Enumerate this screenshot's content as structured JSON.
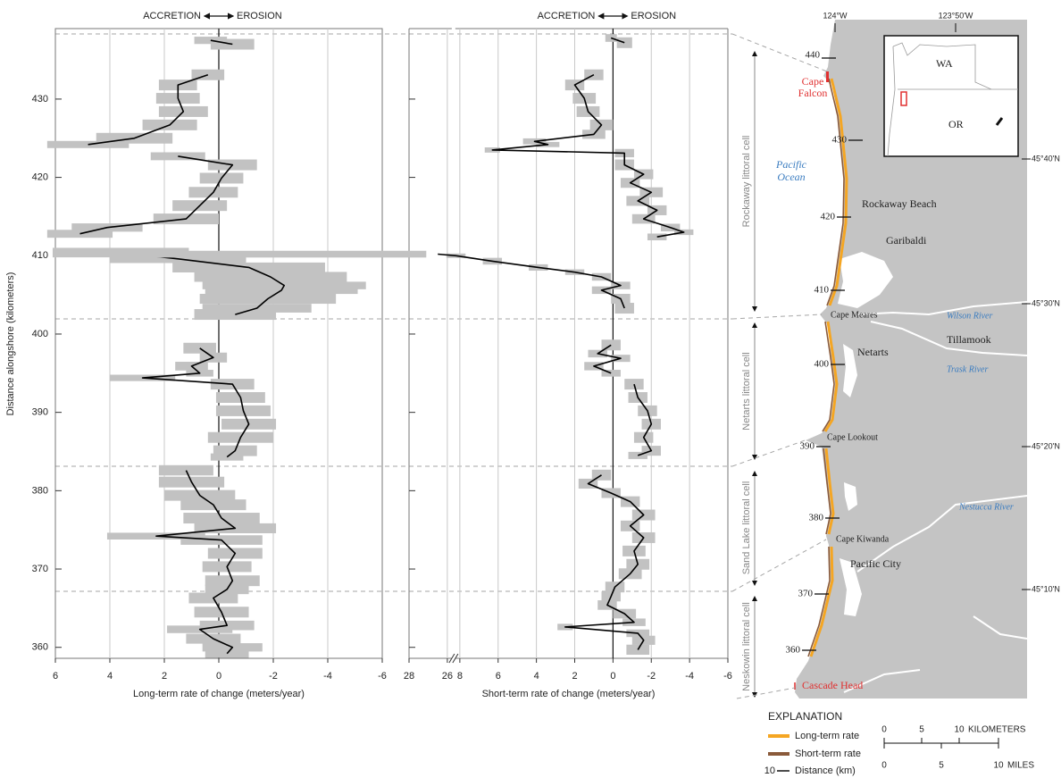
{
  "chart_data": [
    {
      "type": "line",
      "orientation": "horizontal",
      "header": [
        "ACCRETION",
        "EROSION"
      ],
      "xlabel": "Long-term rate of change (meters/year)",
      "ylabel": "Distance alongshore (kilometers)",
      "xlim": [
        6,
        -6
      ],
      "xticks": [
        6,
        4,
        2,
        0,
        -2,
        -4,
        -6
      ],
      "ylim": [
        358.6,
        439
      ],
      "yticks": [
        360,
        370,
        380,
        390,
        400,
        410,
        420,
        430
      ],
      "show_ytick_labels": true,
      "grid": true,
      "series": [
        {
          "color": "#000000",
          "band_color": "#c2c2c2",
          "y": [
            437.5,
            437.0,
            435.0,
            433.1,
            431.8,
            430.1,
            428.4,
            426.7,
            425.0,
            424.2,
            423.4,
            422.7,
            421.6,
            419.9,
            418.1,
            416.4,
            414.7,
            413.6,
            412.8,
            411.8,
            410.4,
            409.6,
            408.5,
            407.3,
            406.2,
            405.6,
            404.5,
            403.3,
            402.5,
            400.5,
            398.2,
            397.0,
            395.9,
            395.0,
            394.4,
            393.6,
            391.9,
            390.2,
            388.5,
            386.8,
            385.1,
            384.3,
            383.5,
            382.6,
            381.1,
            379.4,
            378.2,
            376.5,
            375.2,
            374.2,
            373.7,
            372.0,
            370.3,
            368.5,
            367.4,
            366.3,
            364.5,
            362.8,
            362.3,
            361.1,
            360.0,
            359.2
          ],
          "values": [
            0.3,
            -0.5,
            null,
            0.4,
            1.5,
            1.5,
            1.3,
            1.8,
            3.1,
            4.8,
            null,
            1.5,
            -0.5,
            -0.1,
            0.2,
            0.7,
            1.2,
            4.1,
            5.1,
            null,
            3.6,
            1.5,
            -1.1,
            -1.9,
            -2.4,
            -2.3,
            -1.8,
            -1.4,
            -0.6,
            null,
            0.7,
            0.2,
            1.0,
            0.7,
            2.8,
            -0.5,
            -0.8,
            -0.9,
            -1.1,
            -0.8,
            -0.6,
            -0.3,
            null,
            1.2,
            1.0,
            0.7,
            0.2,
            -0.1,
            -0.6,
            2.3,
            -0.1,
            -0.6,
            -0.3,
            -0.5,
            -0.3,
            0.2,
            -0.1,
            -0.3,
            0.7,
            0.2,
            -0.5,
            -0.3
          ],
          "error": [
            0.6,
            0.8,
            null,
            0.6,
            0.7,
            0.8,
            0.9,
            1.0,
            1.4,
            1.5,
            null,
            1.0,
            0.9,
            0.8,
            0.9,
            1.0,
            1.2,
            1.3,
            1.2,
            null,
            2.5,
            2.5,
            2.8,
            2.8,
            3.0,
            2.8,
            2.5,
            2.0,
            1.5,
            null,
            0.6,
            0.5,
            0.6,
            0.5,
            1.2,
            0.8,
            0.9,
            1.0,
            1.0,
            1.2,
            0.8,
            0.6,
            null,
            1.0,
            1.2,
            1.3,
            1.2,
            1.4,
            1.5,
            1.8,
            1.5,
            1.0,
            0.9,
            1.0,
            0.8,
            0.9,
            1.0,
            1.0,
            1.2,
            1.0,
            1.1,
            0.8
          ]
        }
      ]
    },
    {
      "type": "line",
      "orientation": "horizontal",
      "header": [
        "ACCRETION",
        "EROSION"
      ],
      "xlabel": "Short-term rate of change (meters/year)",
      "xlim": [
        28,
        -6
      ],
      "x_break": [
        26,
        8
      ],
      "xticks": [
        28,
        26,
        8,
        6,
        4,
        2,
        0,
        -2,
        -4,
        -6
      ],
      "ylim": [
        358.6,
        439
      ],
      "yticks": [
        360,
        370,
        380,
        390,
        400,
        410,
        420,
        430
      ],
      "show_ytick_labels": false,
      "grid": true,
      "series": [
        {
          "color": "#000000",
          "band_color": "#c2c2c2",
          "y": [
            437.8,
            437.2,
            435.0,
            433.1,
            431.8,
            430.1,
            428.4,
            426.7,
            425.5,
            424.6,
            424.2,
            423.5,
            423.1,
            421.6,
            420.4,
            419.3,
            418.1,
            417.0,
            415.8,
            414.7,
            413.6,
            413.0,
            412.4,
            411.5,
            410.2,
            410.0,
            409.3,
            408.5,
            407.9,
            407.3,
            406.2,
            405.6,
            404.5,
            403.3,
            401.5,
            398.6,
            397.5,
            396.9,
            395.9,
            395.0,
            394.4,
            393.6,
            391.9,
            390.2,
            388.5,
            386.8,
            385.1,
            384.5,
            383.5,
            382.0,
            380.9,
            379.7,
            378.6,
            376.9,
            375.5,
            374.0,
            372.3,
            370.6,
            369.4,
            367.7,
            366.5,
            365.4,
            364.3,
            363.2,
            362.6,
            361.8,
            360.9,
            359.7
          ],
          "values": [
            0.1,
            -0.6,
            null,
            1.0,
            2.0,
            1.5,
            1.3,
            0.6,
            1.0,
            4.1,
            3.4,
            6.3,
            -0.6,
            -0.6,
            -1.6,
            -0.9,
            -2.0,
            -1.3,
            -2.3,
            -1.6,
            -3.0,
            -3.7,
            -2.3,
            null,
            26.5,
            8.2,
            6.3,
            3.9,
            2.0,
            0.6,
            -0.4,
            0.6,
            -0.4,
            -0.6,
            null,
            0.1,
            0.8,
            -0.4,
            1.0,
            0.1,
            null,
            -1.1,
            -1.3,
            -1.8,
            -2.0,
            -1.6,
            -2.0,
            -1.3,
            null,
            0.6,
            1.3,
            0.1,
            -0.9,
            -1.6,
            -0.9,
            -1.6,
            -1.1,
            -1.3,
            -0.9,
            -0.1,
            0.1,
            0.3,
            -0.6,
            -1.1,
            2.5,
            -1.3,
            -1.6,
            -1.3
          ],
          "error": [
            0.3,
            0.4,
            null,
            0.5,
            0.5,
            0.6,
            0.6,
            0.6,
            0.6,
            0.6,
            0.6,
            0.4,
            0.5,
            0.5,
            0.5,
            0.5,
            0.6,
            0.6,
            0.5,
            0.6,
            0.5,
            0.5,
            0.5,
            null,
            0.6,
            0.5,
            0.5,
            0.5,
            0.5,
            0.5,
            0.5,
            0.5,
            0.5,
            0.5,
            null,
            0.5,
            0.5,
            0.5,
            0.5,
            0.5,
            null,
            0.5,
            0.5,
            0.5,
            0.5,
            0.5,
            0.5,
            0.5,
            null,
            0.5,
            0.5,
            0.5,
            0.5,
            0.6,
            0.5,
            0.6,
            0.6,
            0.6,
            0.6,
            0.5,
            0.5,
            0.5,
            0.6,
            0.6,
            0.4,
            0.6,
            0.6,
            0.6
          ]
        }
      ]
    }
  ],
  "map": {
    "longitude_labels": [
      "124°W",
      "123°50'W"
    ],
    "latitude_labels": [
      "45°40'N",
      "45°30'N",
      "45°20'N",
      "45°10'N"
    ],
    "distance_labels": [
      440,
      430,
      420,
      410,
      400,
      390,
      380,
      370,
      360
    ],
    "cell_labels": [
      "Rockaway littoral cell",
      "Netarts littoral cell",
      "Sand Lake littoral cell",
      "Neskowin littoral cell"
    ],
    "cape_falcon": [
      "Cape",
      "Falcon"
    ],
    "ocean_label": [
      "Pacific",
      "Ocean"
    ],
    "places": [
      "Rockaway Beach",
      "Garibaldi",
      "Cape Meares",
      "Tillamook",
      "Netarts",
      "Cape Lookout",
      "Cape Kiwanda",
      "Pacific City"
    ],
    "rivers": [
      "Wilson River",
      "Trask River",
      "Nestucca River"
    ],
    "cascade_head": "Cascade Head",
    "inset_labels": [
      "WA",
      "OR"
    ],
    "explanation": {
      "title": "EXPLANATION",
      "items": [
        "Long-term rate",
        "Short-term rate",
        "Distance (km)"
      ],
      "distance_tick": 10
    },
    "scale": {
      "km_ticks": [
        0,
        5,
        10
      ],
      "km_unit": "KILOMETERS",
      "mile_ticks": [
        0,
        5,
        10
      ],
      "mile_unit": "MILES"
    }
  }
}
